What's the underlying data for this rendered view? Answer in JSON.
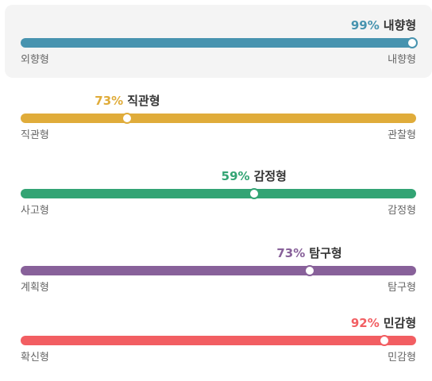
{
  "traits": [
    {
      "percent": "99%",
      "value": 99,
      "label": "내향형",
      "left": "외향형",
      "right": "내향형",
      "color": "#4793af",
      "highlighted": true
    },
    {
      "percent": "73%",
      "value": 27,
      "label": "직관형",
      "left": "직관형",
      "right": "관찰형",
      "color": "#e0ac3a",
      "highlighted": false
    },
    {
      "percent": "59%",
      "value": 59,
      "label": "감정형",
      "left": "사고형",
      "right": "감정형",
      "color": "#33a474",
      "highlighted": false
    },
    {
      "percent": "73%",
      "value": 73,
      "label": "탐구형",
      "left": "계획형",
      "right": "탐구형",
      "color": "#88619a",
      "highlighted": false
    },
    {
      "percent": "92%",
      "value": 92,
      "label": "민감형",
      "left": "확신형",
      "right": "민감형",
      "color": "#f25e62",
      "highlighted": false
    }
  ]
}
